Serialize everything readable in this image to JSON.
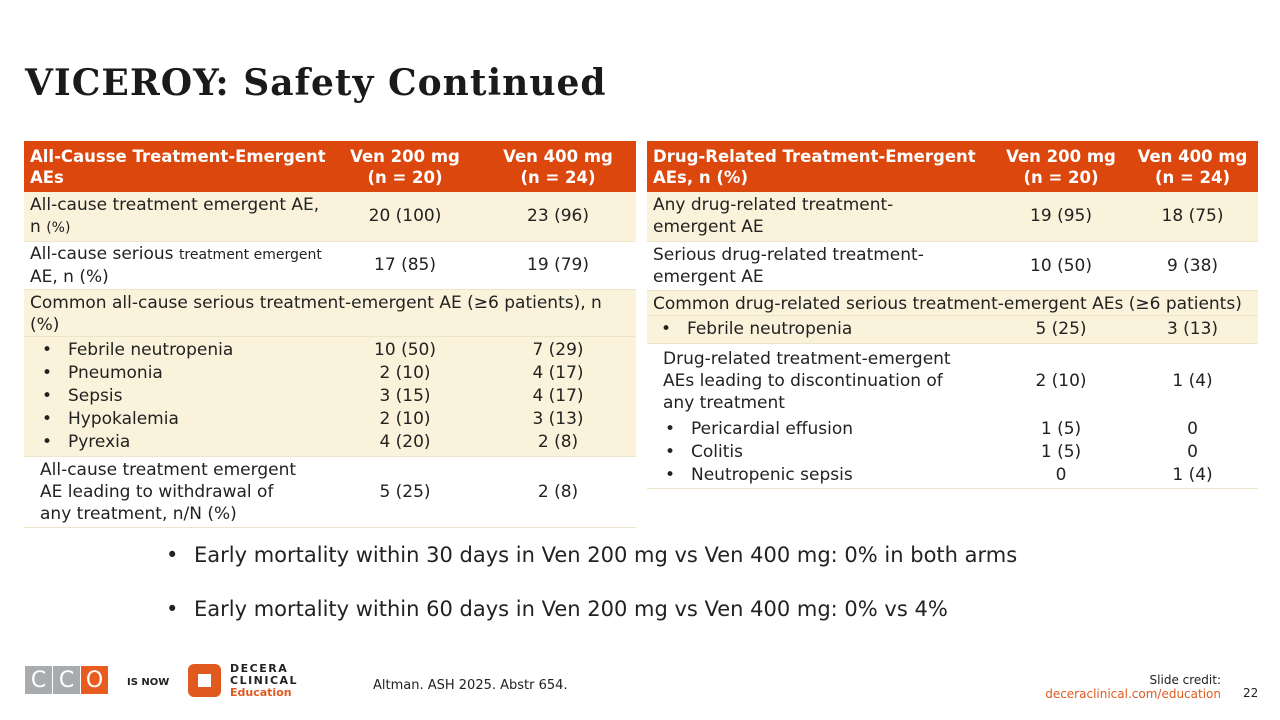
{
  "title": "VICEROY: Safety Continued",
  "left_table": {
    "headers": [
      "All-Causse Treatment-Emergent AEs",
      "Ven 200 mg\n(n = 20)",
      "Ven 400 mg\n(n = 24)"
    ],
    "h": {
      "c0": "All-Causse Treatment-Emergent AEs",
      "c1a": "Ven 200 mg",
      "c1b": "(n = 20)",
      "c2a": "Ven 400 mg",
      "c2b": "(n = 24)"
    },
    "r1": {
      "label": "All-cause treatment emergent AE, n",
      "label_small": "(%)",
      "v1": "20 (100)",
      "v2": "23 (96)"
    },
    "r2": {
      "label_a": "All-cause serious",
      "label_small": "treatment emergent",
      "label_b": "AE, n (%)",
      "v1": "17 (85)",
      "v2": "19 (79)"
    },
    "r3": {
      "label": "Common all-cause serious treatment-emergent AE (≥6 patients), n (%)",
      "items": [
        {
          "label": "Febrile neutropenia",
          "v1": "10 (50)",
          "v2": "7 (29)"
        },
        {
          "label": "Pneumonia",
          "v1": "2 (10)",
          "v2": "4 (17)"
        },
        {
          "label": "Sepsis",
          "v1": "3 (15)",
          "v2": "4 (17)"
        },
        {
          "label": "Hypokalemia",
          "v1": "2 (10)",
          "v2": "3 (13)"
        },
        {
          "label": "Pyrexia",
          "v1": "4 (20)",
          "v2": "2 (8)"
        }
      ]
    },
    "r4": {
      "label": "All-cause treatment emergent AE leading to withdrawal of any treatment, n/N (%)",
      "v1": "5 (25)",
      "v2": "2 (8)"
    }
  },
  "right_table": {
    "h": {
      "c0": "Drug-Related Treatment-Emergent AEs, n (%)",
      "c1a": "Ven 200 mg",
      "c1b": "(n = 20)",
      "c2a": "Ven 400 mg",
      "c2b": "(n = 24)"
    },
    "r1": {
      "label": "Any drug-related treatment-emergent AE",
      "v1": "19 (95)",
      "v2": "18 (75)"
    },
    "r2": {
      "label": "Serious drug-related treatment-emergent AE",
      "v1": "10 (50)",
      "v2": "9 (38)"
    },
    "r3": {
      "label": "Common drug-related serious treatment-emergent AEs (≥6 patients)",
      "items": [
        {
          "label": "Febrile neutropenia",
          "v1": "5 (25)",
          "v2": "3 (13)"
        }
      ]
    },
    "r4": {
      "label": "Drug-related treatment-emergent AEs leading to discontinuation of any treatment",
      "v1": "2 (10)",
      "v2": "1 (4)",
      "items": [
        {
          "label": "Pericardial effusion",
          "v1": "1 (5)",
          "v2": "0"
        },
        {
          "label": "Colitis",
          "v1": "1 (5)",
          "v2": "0"
        },
        {
          "label": "Neutropenic sepsis",
          "v1": "0",
          "v2": "1 (4)"
        }
      ]
    }
  },
  "bullets": [
    "Early mortality within 30 days in Ven 200 mg vs Ven 400 mg: 0% in both arms",
    "Early mortality within 60 days in Ven 200 mg vs Ven 400 mg: 0% vs 4%"
  ],
  "footer": {
    "cco_letters": [
      "C",
      "C",
      "O"
    ],
    "is_now": "IS NOW",
    "logo_line1": "DECERA",
    "logo_line2": "CLINICAL",
    "logo_line3": "Education",
    "citation": "Altman. ASH 2025. Abstr 654.",
    "credit_label": "Slide credit:",
    "credit_link": "deceraclinical.com/education",
    "page": "22"
  },
  "colors": {
    "header": "#DC470E",
    "cream": "#FAF2DA",
    "accent": "#E05A20"
  }
}
